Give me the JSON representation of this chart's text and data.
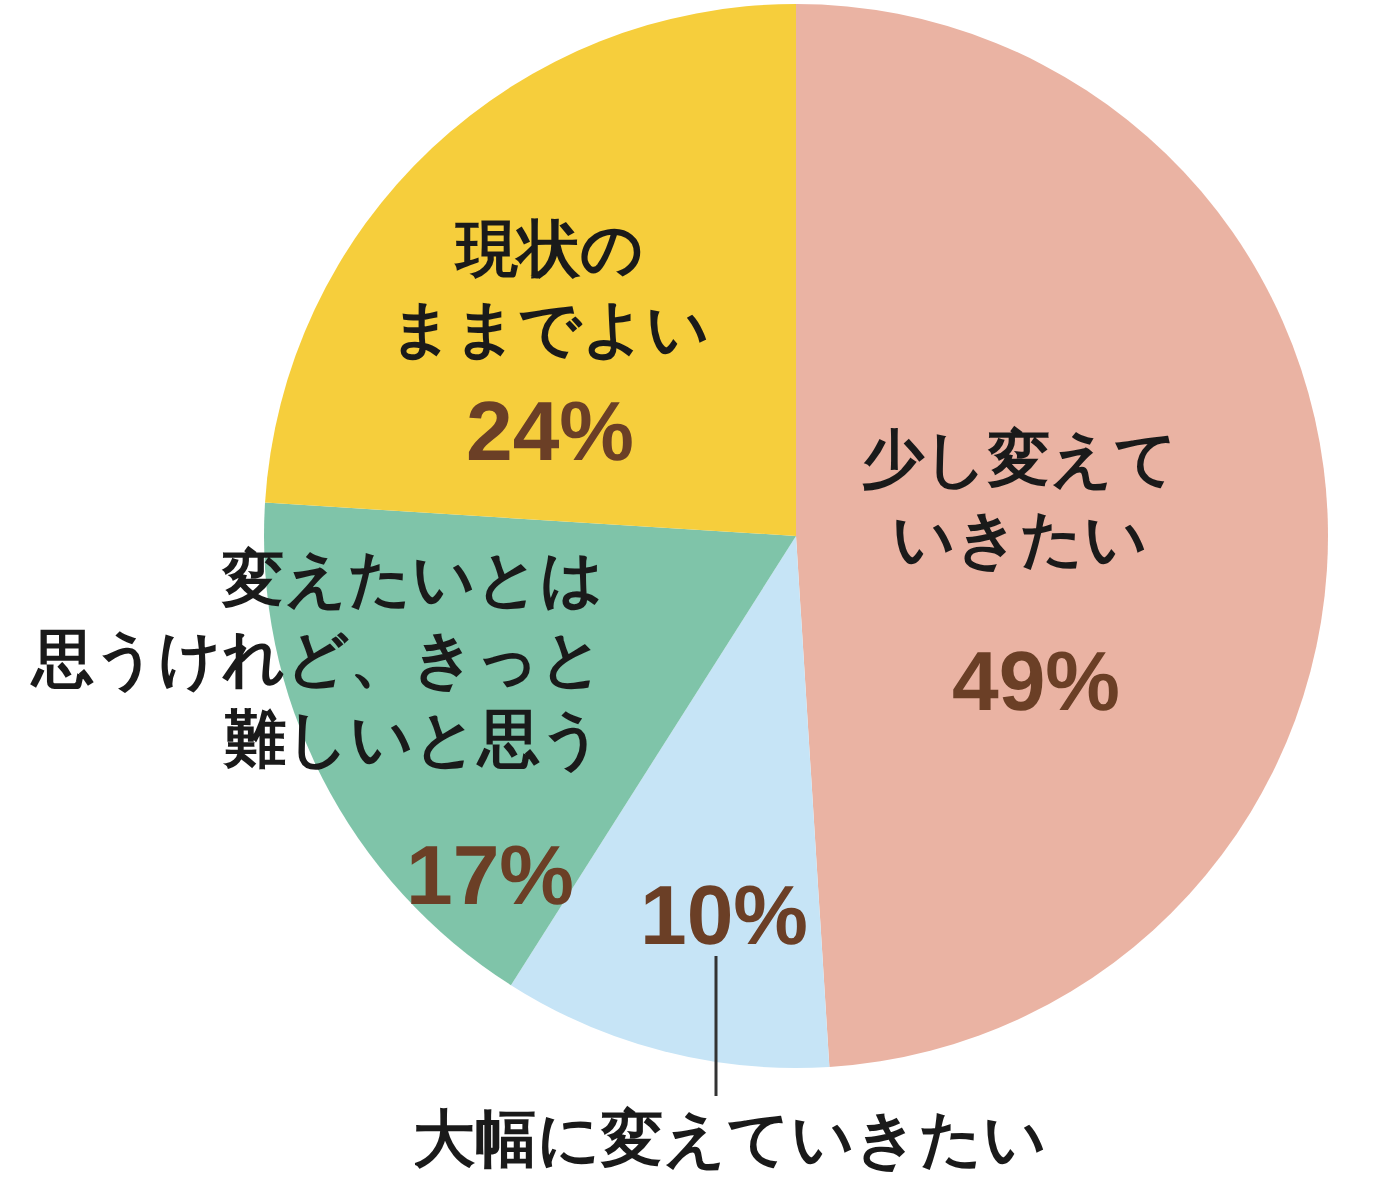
{
  "chart_data": {
    "type": "pie",
    "categories": [
      "少し変えていきたい",
      "大幅に変えていきたい",
      "変えたいとは思うけれど、きっと難しいと思う",
      "現状のままでよい"
    ],
    "values": [
      49,
      10,
      17,
      24
    ],
    "colors": [
      "#eab3a3",
      "#c6e4f6",
      "#7fc4a9",
      "#f6ce3c"
    ],
    "value_labels": [
      "49%",
      "10%",
      "17%",
      "24%"
    ]
  }
}
